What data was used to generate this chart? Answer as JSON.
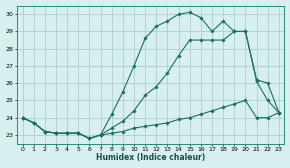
{
  "xlabel": "Humidex (Indice chaleur)",
  "bg_color": "#d8efef",
  "grid_color": "#aacece",
  "line_color": "#1a7060",
  "xlim": [
    -0.5,
    23.5
  ],
  "ylim": [
    22.5,
    30.5
  ],
  "yticks": [
    23,
    24,
    25,
    26,
    27,
    28,
    29,
    30
  ],
  "xticks": [
    0,
    1,
    2,
    3,
    4,
    5,
    6,
    7,
    8,
    9,
    10,
    11,
    12,
    13,
    14,
    15,
    16,
    17,
    18,
    19,
    20,
    21,
    22,
    23
  ],
  "line_top_x": [
    0,
    1,
    2,
    3,
    4,
    5,
    6,
    7,
    8,
    9,
    10,
    11,
    12,
    13,
    14,
    15,
    16,
    17,
    18,
    19,
    20,
    21,
    22,
    23
  ],
  "line_top_y": [
    24.0,
    23.7,
    23.2,
    23.1,
    23.1,
    23.1,
    22.8,
    23.0,
    24.2,
    25.5,
    27.0,
    28.6,
    29.3,
    29.6,
    30.0,
    30.1,
    29.8,
    29.0,
    29.6,
    29.0,
    29.0,
    26.1,
    25.0,
    24.3
  ],
  "line_mid_x": [
    0,
    1,
    2,
    3,
    4,
    5,
    6,
    7,
    8,
    9,
    10,
    11,
    12,
    13,
    14,
    15,
    16,
    17,
    18,
    19,
    20,
    21,
    22,
    23
  ],
  "line_mid_y": [
    24.0,
    23.7,
    23.2,
    23.1,
    23.1,
    23.1,
    22.8,
    23.0,
    23.4,
    23.8,
    24.4,
    25.3,
    25.8,
    26.6,
    27.6,
    28.5,
    28.5,
    28.5,
    28.5,
    29.0,
    29.0,
    26.2,
    26.0,
    24.3
  ],
  "line_bot_x": [
    0,
    1,
    2,
    3,
    4,
    5,
    6,
    7,
    8,
    9,
    10,
    11,
    12,
    13,
    14,
    15,
    16,
    17,
    18,
    19,
    20,
    21,
    22,
    23
  ],
  "line_bot_y": [
    24.0,
    23.7,
    23.2,
    23.1,
    23.1,
    23.1,
    22.8,
    23.0,
    23.1,
    23.2,
    23.4,
    23.5,
    23.6,
    23.7,
    23.9,
    24.0,
    24.2,
    24.4,
    24.6,
    24.8,
    25.0,
    24.0,
    24.0,
    24.3
  ]
}
